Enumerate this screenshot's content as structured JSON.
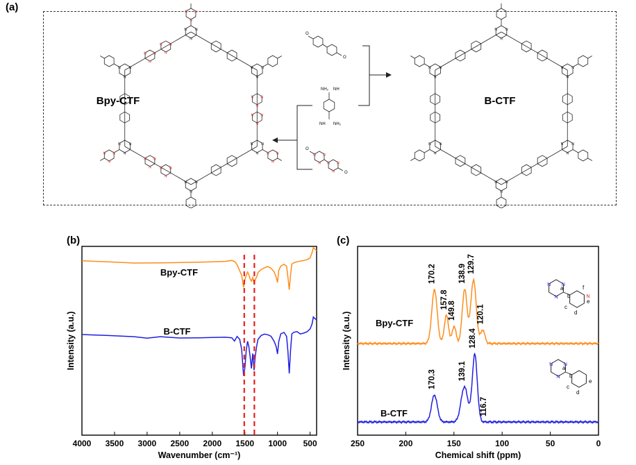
{
  "panel_labels": {
    "a": "(a)",
    "b": "(b)",
    "c": "(c)"
  },
  "scheme": {
    "left_framework": "Bpy-CTF",
    "right_framework": "B-CTF",
    "atoms": {
      "N": "N",
      "NH": "NH",
      "NH2": "NH₂",
      "O": "O"
    }
  },
  "chart_data": [
    {
      "type": "line",
      "xlabel": "Wavenumber (cm⁻¹)",
      "ylabel": "Intensity (a.u.)",
      "xlim": [
        4000,
        400
      ],
      "x_reversed": true,
      "x_ticks": [
        4000,
        3500,
        3000,
        2500,
        2000,
        1500,
        1000,
        500
      ],
      "grid": false,
      "guide_lines_cm": [
        1510,
        1355
      ],
      "series": [
        {
          "name": "Bpy-CTF",
          "color": "#ff8c1a",
          "x": [
            4000,
            3600,
            3200,
            3000,
            2800,
            2500,
            2200,
            2000,
            1800,
            1700,
            1650,
            1620,
            1580,
            1550,
            1520,
            1500,
            1480,
            1460,
            1440,
            1420,
            1400,
            1380,
            1360,
            1340,
            1320,
            1300,
            1250,
            1200,
            1150,
            1100,
            1050,
            1020,
            1000,
            980,
            950,
            900,
            860,
            840,
            820,
            800,
            780,
            750,
            700,
            650,
            600,
            550,
            500,
            470,
            450,
            430,
            400
          ],
          "y": [
            0.9,
            0.75,
            0.5,
            0.45,
            0.4,
            0.45,
            0.6,
            0.75,
            0.85,
            1.0,
            0.6,
            0.0,
            -1.2,
            -2.0,
            -4.5,
            -3.0,
            -2.2,
            -1.5,
            -2.0,
            -2.8,
            -3.2,
            -2.5,
            -3.8,
            -3.0,
            -2.5,
            -1.5,
            -0.8,
            -0.5,
            -0.3,
            -0.7,
            -1.5,
            -2.5,
            -3.5,
            -1.0,
            -0.2,
            0.1,
            -0.3,
            -2.5,
            -5.0,
            -2.0,
            0.2,
            0.4,
            0.6,
            0.8,
            1.0,
            1.2,
            1.5,
            2.5,
            3.5,
            3.3,
            3.0
          ]
        },
        {
          "name": "B-CTF",
          "color": "#1f1fe0",
          "x": [
            4000,
            3600,
            3200,
            3000,
            2800,
            2500,
            2200,
            2000,
            1800,
            1700,
            1660,
            1620,
            1580,
            1550,
            1520,
            1500,
            1480,
            1460,
            1440,
            1420,
            1400,
            1380,
            1360,
            1340,
            1320,
            1300,
            1250,
            1200,
            1150,
            1100,
            1050,
            1020,
            1000,
            980,
            950,
            900,
            860,
            840,
            820,
            800,
            780,
            750,
            700,
            650,
            600,
            550,
            500,
            470,
            450,
            430,
            400
          ],
          "y": [
            0.5,
            0.3,
            0.0,
            -0.4,
            -0.1,
            -0.3,
            -0.2,
            -0.1,
            -0.1,
            -0.3,
            -1.0,
            0.0,
            -0.5,
            -2.5,
            -8.0,
            -6.5,
            -3.0,
            -1.0,
            -2.0,
            -4.0,
            -6.5,
            -3.5,
            -7.0,
            -4.0,
            -2.0,
            -0.5,
            0.3,
            0.5,
            0.3,
            0.0,
            -1.0,
            -2.0,
            -3.5,
            -1.0,
            0.5,
            0.8,
            0.0,
            -3.0,
            -7.5,
            -3.0,
            0.5,
            0.8,
            1.0,
            0.6,
            0.8,
            1.0,
            1.5,
            2.5,
            4.0,
            3.8,
            3.5
          ]
        }
      ]
    },
    {
      "type": "line",
      "xlabel": "Chemical shift (ppm)",
      "ylabel": "Intensity (a.u.)",
      "xlim": [
        250,
        0
      ],
      "x_reversed": true,
      "x_ticks": [
        250,
        200,
        150,
        100,
        50,
        0
      ],
      "grid": false,
      "series": [
        {
          "name": "Bpy-CTF",
          "color": "#ff8c1a",
          "peaks": [
            {
              "shift": 170.2,
              "height": 1.0,
              "width": 2.8,
              "label": "170.2"
            },
            {
              "shift": 157.8,
              "height": 0.52,
              "width": 2.2,
              "label": "157.8"
            },
            {
              "shift": 149.8,
              "height": 0.32,
              "width": 2.0,
              "label": "149.8"
            },
            {
              "shift": 138.9,
              "height": 1.0,
              "width": 2.5,
              "label": "138.9"
            },
            {
              "shift": 129.7,
              "height": 1.18,
              "width": 2.8,
              "label": "129.7"
            },
            {
              "shift": 120.1,
              "height": 0.25,
              "width": 2.2,
              "label": "120.1"
            }
          ],
          "structure_labels": [
            "a",
            "b",
            "c",
            "d",
            "e",
            "f"
          ]
        },
        {
          "name": "B-CTF",
          "color": "#1f1fe0",
          "peaks": [
            {
              "shift": 170.3,
              "height": 0.5,
              "width": 3.0,
              "label": "170.3"
            },
            {
              "shift": 139.1,
              "height": 0.65,
              "width": 3.5,
              "label": "139.1"
            },
            {
              "shift": 128.4,
              "height": 1.25,
              "width": 2.6,
              "label": "128.4"
            },
            {
              "shift": 116.7,
              "height": 0.0,
              "width": 2.0,
              "label": "116.7"
            }
          ],
          "structure_labels": [
            "a",
            "b",
            "c",
            "d",
            "e"
          ]
        }
      ]
    }
  ]
}
